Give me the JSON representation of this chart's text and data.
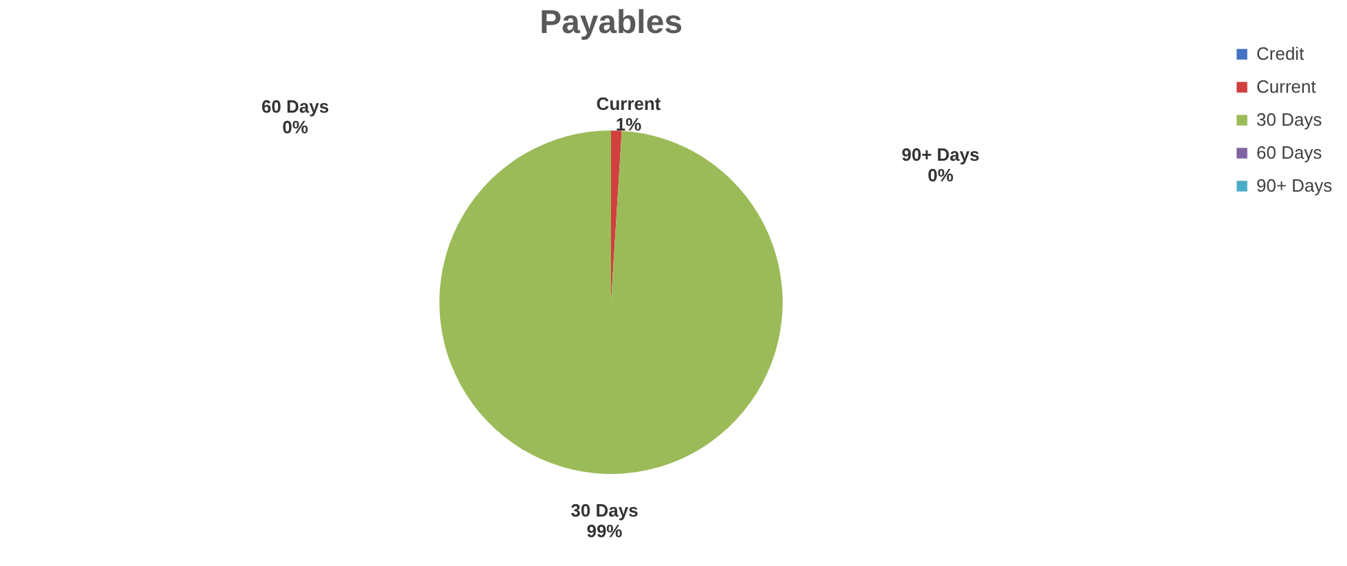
{
  "chart_data": {
    "type": "pie",
    "title": "Payables",
    "categories": [
      "Credit",
      "Current",
      "30 Days",
      "60 Days",
      "90+ Days"
    ],
    "values": [
      0,
      1,
      99,
      0,
      0
    ],
    "colors": [
      "#4472c4",
      "#d13f3f",
      "#9bbb59",
      "#8064a2",
      "#4bacc6"
    ],
    "value_labels": [
      null,
      "1%",
      "99%",
      "0%",
      "0%"
    ],
    "legend": "right"
  }
}
